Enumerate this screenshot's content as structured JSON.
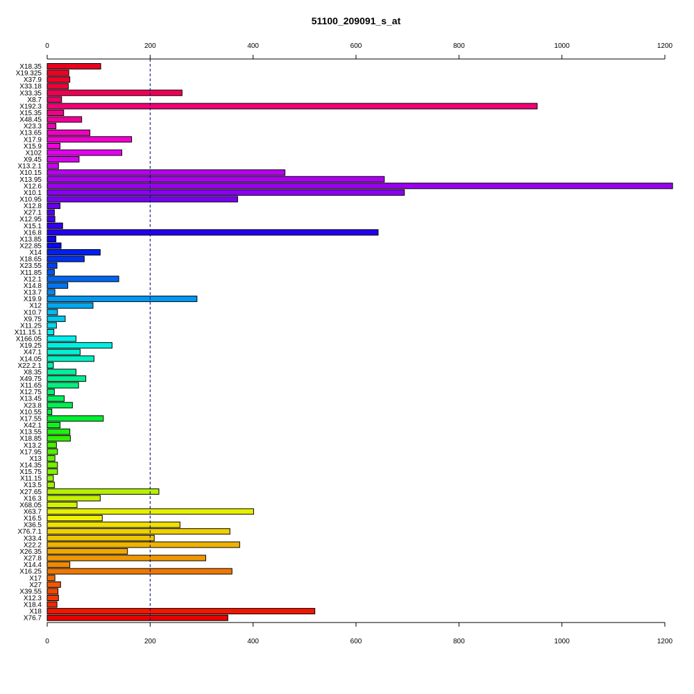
{
  "chart_data": {
    "type": "bar",
    "orientation": "horizontal",
    "title": "51100_209091_s_at",
    "xlabel": "",
    "ylabel": "",
    "xlim": [
      0,
      1200
    ],
    "xticks": [
      0,
      200,
      400,
      600,
      800,
      1000,
      1200
    ],
    "axes": "top and bottom",
    "grid": false,
    "reference_line": {
      "value": 200,
      "style": "dashed",
      "color": "#000080"
    },
    "categories": [
      "X18.35",
      "X19.325",
      "X37.9",
      "X33.18",
      "X33.35",
      "X8.7",
      "X192.3",
      "X15.35",
      "X48.45",
      "X23.3",
      "X13.65",
      "X17.9",
      "X15.9",
      "X102",
      "X9.45",
      "X13.2.1",
      "X10.15",
      "X13.95",
      "X12.6",
      "X10.1",
      "X10.95",
      "X12.8",
      "X27.1",
      "X12.95",
      "X15.1",
      "X16.8",
      "X13.85",
      "X22.85",
      "X14",
      "X18.65",
      "X23.55",
      "X11.85",
      "X12.1",
      "X14.8",
      "X13.7",
      "X19.9",
      "X12",
      "X10.7",
      "X9.75",
      "X11.25",
      "X11.15.1",
      "X166.05",
      "X19.25",
      "X47.1",
      "X14.05",
      "X22.2.1",
      "X8.35",
      "X49.75",
      "X11.65",
      "X12.75",
      "X13.45",
      "X23.8",
      "X10.55",
      "X17.55",
      "X42.1",
      "X13.55",
      "X18.85",
      "X13.2",
      "X17.95",
      "X13",
      "X14.35",
      "X15.75",
      "X11.15",
      "X13.5",
      "X27.65",
      "X16.3",
      "X68.05",
      "X63.7",
      "X16.5",
      "X36.5",
      "X76.7.1",
      "X33.4",
      "X22.2",
      "X26.35",
      "X27.8",
      "X14.4",
      "X16.25",
      "X17",
      "X27",
      "X39.55",
      "X12.3",
      "X18.4",
      "X18",
      "X76.7"
    ],
    "values": [
      104,
      42,
      44,
      41,
      262,
      28,
      952,
      32,
      67,
      17,
      83,
      164,
      25,
      145,
      62,
      22,
      462,
      655,
      1215,
      694,
      370,
      25,
      14,
      15,
      30,
      643,
      17,
      27,
      103,
      72,
      19,
      14,
      139,
      40,
      15,
      291,
      89,
      20,
      35,
      18,
      13,
      56,
      126,
      64,
      91,
      12,
      56,
      75,
      61,
      14,
      33,
      49,
      9,
      109,
      25,
      44,
      45,
      18,
      20,
      15,
      20,
      20,
      12,
      14,
      217,
      103,
      58,
      401,
      107,
      258,
      355,
      208,
      374,
      156,
      308,
      44,
      359,
      15,
      26,
      21,
      22,
      19,
      520,
      351
    ],
    "colors": [
      "#e8001e",
      "#ef0024",
      "#f2002e",
      "#ee0038",
      "#f00055",
      "#ea0064",
      "#f20075",
      "#ef0088",
      "#f00098",
      "#f000b0",
      "#f000c0",
      "#f000d0",
      "#f000e0",
      "#e500f0",
      "#d800f0",
      "#c800f0",
      "#b800f0",
      "#aa00f0",
      "#9a00f0",
      "#8a00f0",
      "#7800f0",
      "#6600f0",
      "#5400f0",
      "#4400f0",
      "#3400f0",
      "#2400f0",
      "#1400f0",
      "#0a0af0",
      "#0020f0",
      "#0030f0",
      "#0040f0",
      "#0055f0",
      "#0066f0",
      "#0075f0",
      "#0088f0",
      "#0098f0",
      "#00a8f0",
      "#00b8f0",
      "#00c8f0",
      "#00d8f0",
      "#00e8f0",
      "#00f0f0",
      "#00f0e0",
      "#00f0d0",
      "#00f0c0",
      "#00f0b0",
      "#00f0a0",
      "#00f090",
      "#00f080",
      "#00f070",
      "#00f060",
      "#00f050",
      "#00f040",
      "#00f030",
      "#0ff020",
      "#20f010",
      "#30f000",
      "#45f000",
      "#55f000",
      "#65f000",
      "#75f000",
      "#85f000",
      "#95f000",
      "#a5f000",
      "#b5f000",
      "#c5f000",
      "#d5f000",
      "#e5f000",
      "#f0f000",
      "#f0e000",
      "#f0d000",
      "#f0c400",
      "#f0b400",
      "#f0a800",
      "#f09800",
      "#f08800",
      "#f07800",
      "#f06800",
      "#f05800",
      "#f04800",
      "#f03800",
      "#f02800",
      "#f01800",
      "#e80000"
    ]
  }
}
